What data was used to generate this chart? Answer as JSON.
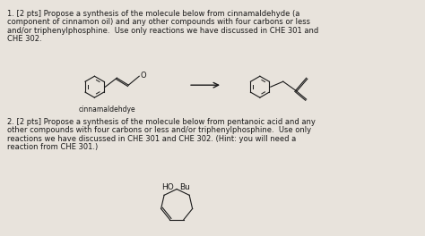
{
  "background_color": "#c8c3bc",
  "paper_color": "#e8e3dc",
  "text_color": "#1a1a1a",
  "fig_width": 4.74,
  "fig_height": 2.64,
  "dpi": 100,
  "line1": "1. [2 pts] Propose a synthesis of the molecule below from cinnamaldehyde (a",
  "line2": "component of cinnamon oil) and any other compounds with four carbons or less",
  "line3": "and/or triphenylphosphine.  Use only reactions we have discussed in CHE 301 and",
  "line4": "CHE 302.",
  "label_cinnam": "cinnamaldehdye",
  "line5": "2. [2 pts] Propose a synthesis of the molecule below from pentanoic acid and any",
  "line6": "other compounds with four carbons or less and/or triphenylphosphine.  Use only",
  "line7": "reactions we have discussed in CHE 301 and CHE 302. (Hint: you will need a",
  "line8": "reaction from CHE 301.)",
  "label_ho": "HO",
  "label_bu": "Bu",
  "font_size_main": 6.0,
  "font_size_label": 5.5
}
